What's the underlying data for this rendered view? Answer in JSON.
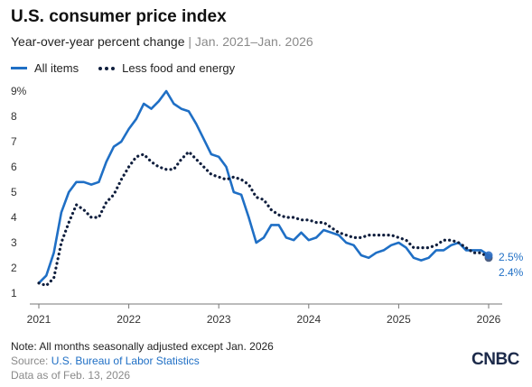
{
  "header": {
    "title": "U.S. consumer price index",
    "subtitle_main": "Year-over-year percent change",
    "subtitle_sep": " | ",
    "subtitle_range": "Jan. 2021–Jan. 2026"
  },
  "legend": {
    "all_items": "All items",
    "core": "Less food and energy"
  },
  "footer": {
    "note": "Note: All months seasonally adjusted except Jan. 2026",
    "source_label": "Source: ",
    "source_link": "U.S. Bureau of Labor Statistics",
    "as_of": "Data as of Feb. 13, 2026",
    "logo": "CNBC"
  },
  "colors": {
    "all_items": "#1f6fc5",
    "core": "#0f1e3d",
    "axis": "#777777"
  },
  "chart_data": {
    "type": "line",
    "x_start": "2021-01",
    "x_end": "2026-01",
    "x_ticks": [
      "2021",
      "2022",
      "2023",
      "2024",
      "2025",
      "2026"
    ],
    "y_ticks": [
      "1",
      "2",
      "3",
      "4",
      "5",
      "6",
      "7",
      "8",
      "9%"
    ],
    "ylim": [
      1,
      9
    ],
    "grid": false,
    "legend_position": "top-left",
    "series": [
      {
        "name": "All items",
        "style": "solid",
        "end_label": "2.5%",
        "values": [
          1.4,
          1.7,
          2.6,
          4.2,
          5.0,
          5.4,
          5.4,
          5.3,
          5.4,
          6.2,
          6.8,
          7.0,
          7.5,
          7.9,
          8.5,
          8.3,
          8.6,
          9.0,
          8.5,
          8.3,
          8.2,
          7.7,
          7.1,
          6.5,
          6.4,
          6.0,
          5.0,
          4.9,
          4.0,
          3.0,
          3.2,
          3.7,
          3.7,
          3.2,
          3.1,
          3.4,
          3.1,
          3.2,
          3.5,
          3.4,
          3.3,
          3.0,
          2.9,
          2.5,
          2.4,
          2.6,
          2.7,
          2.9,
          3.0,
          2.8,
          2.4,
          2.3,
          2.4,
          2.7,
          2.7,
          2.9,
          3.0,
          2.7,
          2.7,
          2.7,
          2.5
        ]
      },
      {
        "name": "Less food and energy",
        "style": "dotted",
        "end_label": "2.4%",
        "values": [
          1.4,
          1.3,
          1.6,
          3.0,
          3.8,
          4.5,
          4.3,
          4.0,
          4.0,
          4.6,
          4.9,
          5.5,
          6.0,
          6.4,
          6.5,
          6.2,
          6.0,
          5.9,
          5.9,
          6.3,
          6.6,
          6.3,
          6.0,
          5.7,
          5.6,
          5.5,
          5.6,
          5.5,
          5.3,
          4.8,
          4.7,
          4.3,
          4.1,
          4.0,
          4.0,
          3.9,
          3.9,
          3.8,
          3.8,
          3.6,
          3.4,
          3.3,
          3.2,
          3.2,
          3.3,
          3.3,
          3.3,
          3.3,
          3.2,
          3.1,
          2.8,
          2.8,
          2.8,
          2.9,
          3.1,
          3.1,
          3.0,
          2.8,
          2.6,
          2.6,
          2.4
        ]
      }
    ]
  }
}
